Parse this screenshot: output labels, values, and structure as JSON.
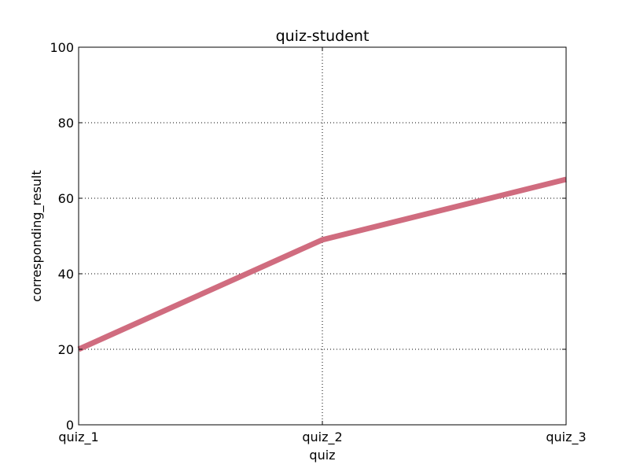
{
  "chart_data": {
    "type": "line",
    "title": "quiz-student",
    "xlabel": "quiz",
    "ylabel": "corresponding_result",
    "categories": [
      "quiz_1",
      "quiz_2",
      "quiz_3"
    ],
    "series": [
      {
        "values": [
          20,
          49,
          65
        ],
        "color": "#d06c7f"
      }
    ],
    "ylim": [
      0,
      100
    ],
    "yticks": [
      0,
      20,
      40,
      60,
      80,
      100
    ],
    "grid": true,
    "legend": "none"
  }
}
